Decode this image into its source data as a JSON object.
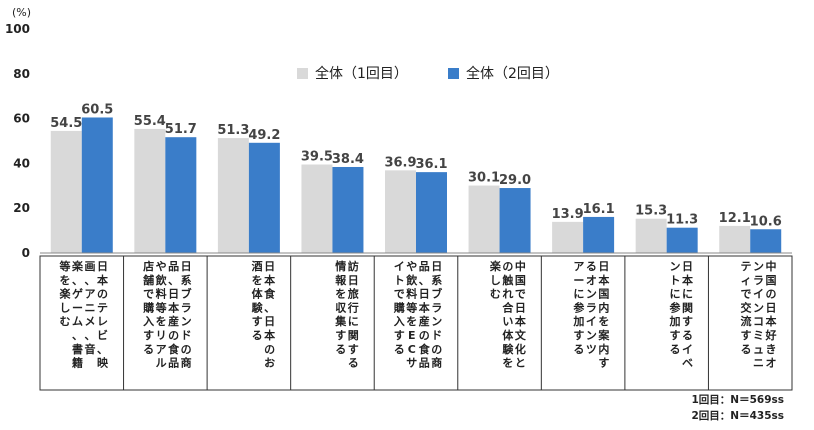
{
  "chart_data": {
    "type": "bar",
    "unit_label": "(%)",
    "categories": [
      [
        "日本のテレビ、映",
        "画、アニメ、音",
        "楽、ゲーム、書籍",
        "等を楽しむ"
      ],
      [
        "日系ブランドの商",
        "品、日本産の食品",
        "や飲料等をリアル",
        "店舗で購入する"
      ],
      [
        "日本食、日本のお",
        "酒を体験する"
      ],
      [
        "訪日旅行に関する",
        "情報を収集する"
      ],
      [
        "日系ブランドの商",
        "品、日本産の食品",
        "や飲料等をECサ",
        "イトで購入する"
      ],
      [
        "中国で日本文化と",
        "の触れ合い体験を",
        "楽しむ"
      ],
      [
        "日本国内を案内す",
        "るオンラインツ",
        "アーに参加する"
      ],
      [
        "日本に関するイベ",
        "ントに参加する"
      ],
      [
        "中国の日本好きオ",
        "ンラインコミュニ",
        "ティで交流する"
      ]
    ],
    "series": [
      {
        "name": "全体（1回目）",
        "color": "#d9d9d9",
        "values": [
          54.5,
          55.4,
          51.3,
          39.5,
          36.9,
          30.1,
          13.9,
          15.3,
          12.1
        ]
      },
      {
        "name": "全体（2回目）",
        "color": "#3a7dc9",
        "values": [
          60.5,
          51.7,
          49.2,
          38.4,
          36.1,
          29.0,
          16.1,
          11.3,
          10.6
        ]
      }
    ],
    "ylim": [
      0,
      100
    ],
    "yticks": [
      0,
      20,
      40,
      60,
      80,
      100
    ],
    "grid": false,
    "legend": "top-right"
  },
  "notes": [
    "1回目：N＝569ss",
    "2回目：N＝435ss"
  ]
}
